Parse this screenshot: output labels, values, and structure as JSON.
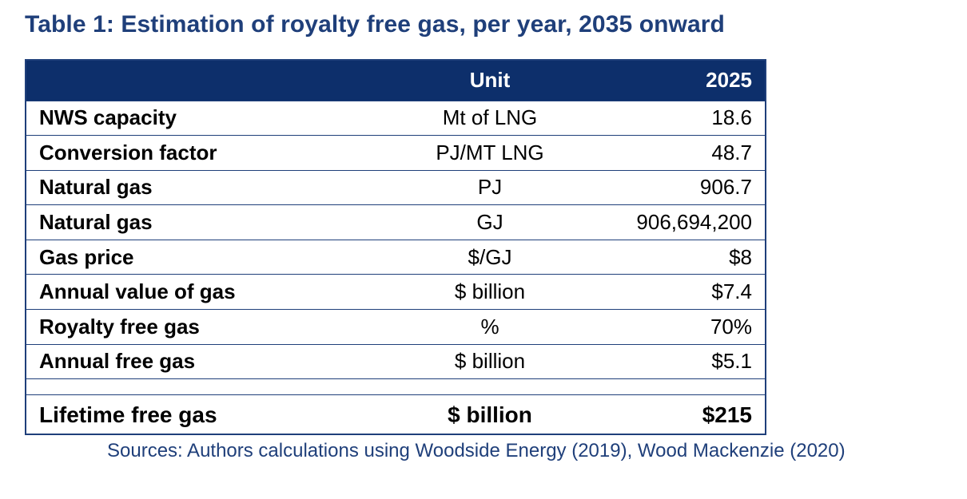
{
  "title": "Table 1: Estimation of royalty free gas, per year, 2035 onward",
  "table": {
    "headers": {
      "label": "",
      "unit": "Unit",
      "value": "2025"
    },
    "rows": [
      {
        "label": "NWS capacity",
        "unit": "Mt of LNG",
        "value": "18.6"
      },
      {
        "label": "Conversion factor",
        "unit": "PJ/MT LNG",
        "value": "48.7"
      },
      {
        "label": "Natural gas",
        "unit": "PJ",
        "value": "906.7"
      },
      {
        "label": "Natural gas",
        "unit": "GJ",
        "value": "906,694,200"
      },
      {
        "label": "Gas price",
        "unit": "$/GJ",
        "value": "$8"
      },
      {
        "label": "Annual value of gas",
        "unit": "$ billion",
        "value": "$7.4"
      },
      {
        "label": "Royalty free gas",
        "unit": "%",
        "value": "70%"
      },
      {
        "label": "Annual free gas",
        "unit": "$ billion",
        "value": "$5.1"
      }
    ],
    "total": {
      "label": "Lifetime free gas",
      "unit": "$ billion",
      "value": "$215"
    }
  },
  "sources": "Sources: Authors calculations using Woodside Energy (2019), Wood Mackenzie (2020)",
  "colors": {
    "header_bg": "#0d2f6b",
    "accent": "#1f3f7a"
  }
}
